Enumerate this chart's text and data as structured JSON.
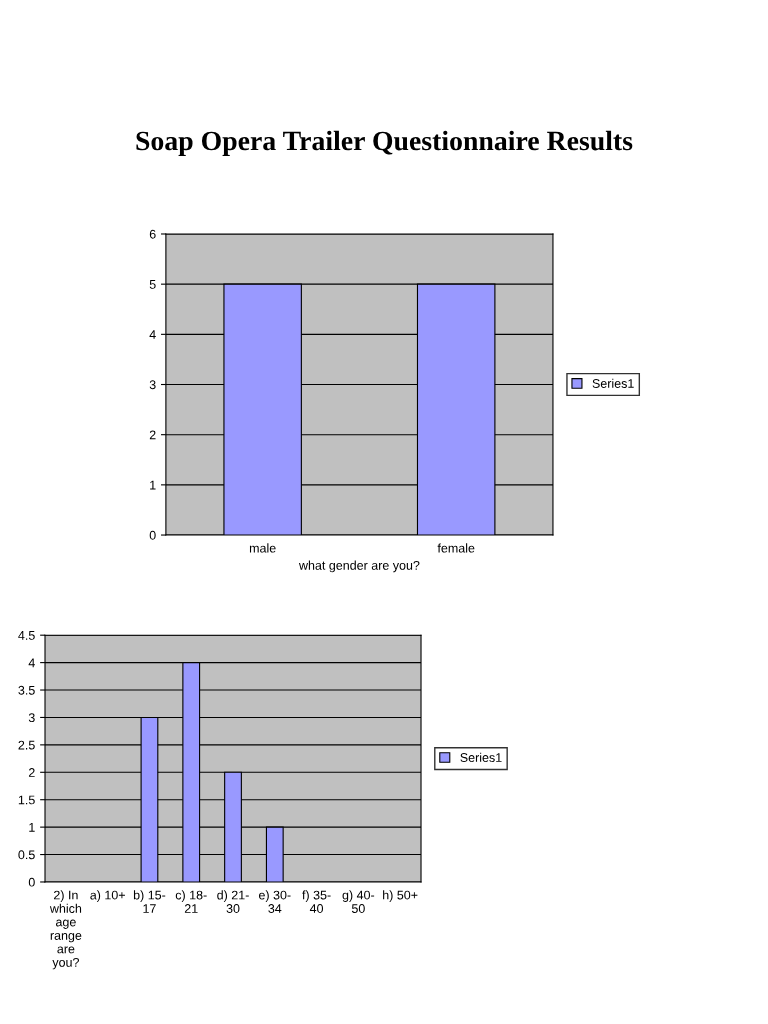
{
  "chart_data": [
    {
      "type": "bar",
      "title": "Soap Opera Trailer Questionnaire Results",
      "xlabel": "what gender are you?",
      "categories": [
        "male",
        "female"
      ],
      "series": [
        {
          "name": "Series1",
          "color": "#9999ff",
          "values": [
            5,
            5
          ]
        }
      ],
      "ylim": [
        0,
        6
      ],
      "yticks": [
        0,
        1,
        2,
        3,
        4,
        5,
        6
      ],
      "grid": "y",
      "legend": "right"
    },
    {
      "type": "bar",
      "categories": [
        "2) In which age range are you?",
        "a) 10+",
        "b) 15-17",
        "c) 18-21",
        "d) 21-30",
        "e) 30-34",
        "f) 35-40",
        "g) 40-50",
        "h) 50+"
      ],
      "series": [
        {
          "name": "Series1",
          "color": "#9999ff",
          "values": [
            null,
            null,
            3,
            4,
            2,
            1,
            null,
            null,
            null
          ]
        }
      ],
      "ylim": [
        0,
        4.5
      ],
      "yticks": [
        0,
        0.5,
        1,
        1.5,
        2,
        2.5,
        3,
        3.5,
        4,
        4.5
      ],
      "grid": "y",
      "legend": "right"
    }
  ]
}
